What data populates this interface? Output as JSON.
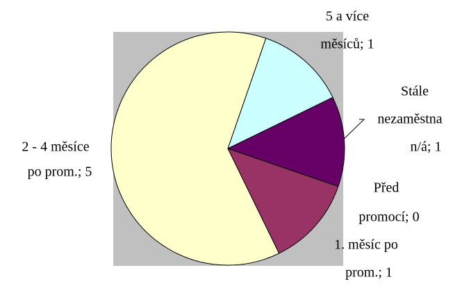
{
  "chart_data": {
    "type": "pie",
    "labels": [
      [
        "5 a více",
        "měsíců; 1"
      ],
      [
        "Stále",
        "nezaměstna",
        "n/á; 1"
      ],
      [
        "Před",
        "promocí; 0"
      ],
      [
        "1. měsíc po",
        "prom.; 1"
      ],
      [
        "2 - 4 měsíce",
        "po prom.; 5"
      ]
    ],
    "values": [
      1,
      1,
      0,
      1,
      5
    ],
    "colors": [
      "#ccffff",
      "#660066",
      "#ff8080",
      "#993366",
      "#ffffcc"
    ],
    "start_angle": 19
  }
}
